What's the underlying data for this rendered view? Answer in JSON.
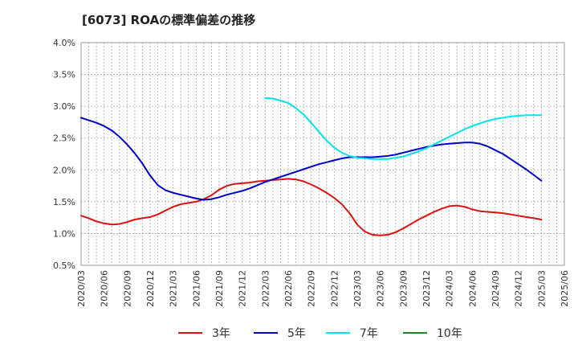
{
  "chart_data": {
    "type": "line",
    "title": "[6073]  ROAの標準偏差の推移",
    "xlabel": "",
    "ylabel": "",
    "ylim": [
      0.5,
      4.0
    ],
    "xlim": [
      "2020/03",
      "2025/06"
    ],
    "grid": true,
    "legend_position": "bottom",
    "y_ticks": [
      "0.5%",
      "1.0%",
      "1.5%",
      "2.0%",
      "2.5%",
      "3.0%",
      "3.5%",
      "4.0%"
    ],
    "x_ticks": [
      "2020/03",
      "2020/06",
      "2020/09",
      "2020/12",
      "2021/03",
      "2021/06",
      "2021/09",
      "2021/12",
      "2022/03",
      "2022/06",
      "2022/09",
      "2022/12",
      "2023/03",
      "2023/06",
      "2023/09",
      "2023/12",
      "2024/03",
      "2024/06",
      "2024/09",
      "2024/12",
      "2025/03",
      "2025/06"
    ],
    "series": [
      {
        "name": "3年",
        "color": "#dd1111",
        "points": [
          [
            "2020/03",
            1.28
          ],
          [
            "2020/04",
            1.24
          ],
          [
            "2020/05",
            1.19
          ],
          [
            "2020/06",
            1.16
          ],
          [
            "2020/07",
            1.14
          ],
          [
            "2020/08",
            1.15
          ],
          [
            "2020/09",
            1.18
          ],
          [
            "2020/10",
            1.22
          ],
          [
            "2020/11",
            1.24
          ],
          [
            "2020/12",
            1.26
          ],
          [
            "2021/01",
            1.3
          ],
          [
            "2021/02",
            1.36
          ],
          [
            "2021/03",
            1.42
          ],
          [
            "2021/04",
            1.46
          ],
          [
            "2021/05",
            1.48
          ],
          [
            "2021/06",
            1.5
          ],
          [
            "2021/07",
            1.54
          ],
          [
            "2021/08",
            1.6
          ],
          [
            "2021/09",
            1.69
          ],
          [
            "2021/10",
            1.75
          ],
          [
            "2021/11",
            1.78
          ],
          [
            "2021/12",
            1.79
          ],
          [
            "2022/01",
            1.8
          ],
          [
            "2022/02",
            1.82
          ],
          [
            "2022/03",
            1.83
          ],
          [
            "2022/04",
            1.84
          ],
          [
            "2022/05",
            1.85
          ],
          [
            "2022/06",
            1.86
          ],
          [
            "2022/07",
            1.85
          ],
          [
            "2022/08",
            1.82
          ],
          [
            "2022/09",
            1.77
          ],
          [
            "2022/10",
            1.71
          ],
          [
            "2022/11",
            1.64
          ],
          [
            "2022/12",
            1.56
          ],
          [
            "2023/01",
            1.46
          ],
          [
            "2023/02",
            1.32
          ],
          [
            "2023/03",
            1.14
          ],
          [
            "2023/04",
            1.03
          ],
          [
            "2023/05",
            0.98
          ],
          [
            "2023/06",
            0.97
          ],
          [
            "2023/07",
            0.98
          ],
          [
            "2023/08",
            1.02
          ],
          [
            "2023/09",
            1.08
          ],
          [
            "2023/10",
            1.15
          ],
          [
            "2023/11",
            1.22
          ],
          [
            "2023/12",
            1.28
          ],
          [
            "2024/01",
            1.34
          ],
          [
            "2024/02",
            1.39
          ],
          [
            "2024/03",
            1.43
          ],
          [
            "2024/04",
            1.44
          ],
          [
            "2024/05",
            1.42
          ],
          [
            "2024/06",
            1.38
          ],
          [
            "2024/07",
            1.35
          ],
          [
            "2024/08",
            1.34
          ],
          [
            "2024/09",
            1.33
          ],
          [
            "2024/10",
            1.32
          ],
          [
            "2024/11",
            1.3
          ],
          [
            "2024/12",
            1.28
          ],
          [
            "2025/01",
            1.26
          ],
          [
            "2025/02",
            1.24
          ],
          [
            "2025/03",
            1.22
          ]
        ]
      },
      {
        "name": "5年",
        "color": "#0000cc",
        "points": [
          [
            "2020/03",
            2.82
          ],
          [
            "2020/04",
            2.78
          ],
          [
            "2020/05",
            2.74
          ],
          [
            "2020/06",
            2.69
          ],
          [
            "2020/07",
            2.62
          ],
          [
            "2020/08",
            2.52
          ],
          [
            "2020/09",
            2.4
          ],
          [
            "2020/10",
            2.26
          ],
          [
            "2020/11",
            2.1
          ],
          [
            "2020/12",
            1.91
          ],
          [
            "2021/01",
            1.76
          ],
          [
            "2021/02",
            1.68
          ],
          [
            "2021/03",
            1.64
          ],
          [
            "2021/04",
            1.61
          ],
          [
            "2021/05",
            1.58
          ],
          [
            "2021/06",
            1.55
          ],
          [
            "2021/07",
            1.53
          ],
          [
            "2021/08",
            1.54
          ],
          [
            "2021/09",
            1.57
          ],
          [
            "2021/10",
            1.61
          ],
          [
            "2021/11",
            1.64
          ],
          [
            "2021/12",
            1.67
          ],
          [
            "2022/01",
            1.71
          ],
          [
            "2022/02",
            1.76
          ],
          [
            "2022/03",
            1.81
          ],
          [
            "2022/04",
            1.85
          ],
          [
            "2022/05",
            1.89
          ],
          [
            "2022/06",
            1.93
          ],
          [
            "2022/07",
            1.97
          ],
          [
            "2022/08",
            2.01
          ],
          [
            "2022/09",
            2.05
          ],
          [
            "2022/10",
            2.09
          ],
          [
            "2022/11",
            2.12
          ],
          [
            "2022/12",
            2.15
          ],
          [
            "2023/01",
            2.18
          ],
          [
            "2023/02",
            2.2
          ],
          [
            "2023/03",
            2.2
          ],
          [
            "2023/04",
            2.2
          ],
          [
            "2023/05",
            2.2
          ],
          [
            "2023/06",
            2.21
          ],
          [
            "2023/07",
            2.22
          ],
          [
            "2023/08",
            2.24
          ],
          [
            "2023/09",
            2.27
          ],
          [
            "2023/10",
            2.3
          ],
          [
            "2023/11",
            2.33
          ],
          [
            "2023/12",
            2.36
          ],
          [
            "2024/01",
            2.38
          ],
          [
            "2024/02",
            2.4
          ],
          [
            "2024/03",
            2.41
          ],
          [
            "2024/04",
            2.42
          ],
          [
            "2024/05",
            2.43
          ],
          [
            "2024/06",
            2.43
          ],
          [
            "2024/07",
            2.41
          ],
          [
            "2024/08",
            2.37
          ],
          [
            "2024/09",
            2.31
          ],
          [
            "2024/10",
            2.25
          ],
          [
            "2024/11",
            2.17
          ],
          [
            "2024/12",
            2.09
          ],
          [
            "2025/01",
            2.01
          ],
          [
            "2025/02",
            1.92
          ],
          [
            "2025/03",
            1.83
          ]
        ]
      },
      {
        "name": "7年",
        "color": "#00e5ee",
        "points": [
          [
            "2022/03",
            3.13
          ],
          [
            "2022/04",
            3.12
          ],
          [
            "2022/05",
            3.09
          ],
          [
            "2022/06",
            3.05
          ],
          [
            "2022/07",
            2.97
          ],
          [
            "2022/08",
            2.87
          ],
          [
            "2022/09",
            2.74
          ],
          [
            "2022/10",
            2.6
          ],
          [
            "2022/11",
            2.46
          ],
          [
            "2022/12",
            2.35
          ],
          [
            "2023/01",
            2.27
          ],
          [
            "2023/02",
            2.22
          ],
          [
            "2023/03",
            2.19
          ],
          [
            "2023/04",
            2.18
          ],
          [
            "2023/05",
            2.17
          ],
          [
            "2023/06",
            2.17
          ],
          [
            "2023/07",
            2.17
          ],
          [
            "2023/08",
            2.19
          ],
          [
            "2023/09",
            2.21
          ],
          [
            "2023/10",
            2.25
          ],
          [
            "2023/11",
            2.29
          ],
          [
            "2023/12",
            2.34
          ],
          [
            "2024/01",
            2.4
          ],
          [
            "2024/02",
            2.46
          ],
          [
            "2024/03",
            2.52
          ],
          [
            "2024/04",
            2.58
          ],
          [
            "2024/05",
            2.64
          ],
          [
            "2024/06",
            2.69
          ],
          [
            "2024/07",
            2.73
          ],
          [
            "2024/08",
            2.77
          ],
          [
            "2024/09",
            2.8
          ],
          [
            "2024/10",
            2.82
          ],
          [
            "2024/11",
            2.84
          ],
          [
            "2024/12",
            2.85
          ],
          [
            "2025/01",
            2.86
          ],
          [
            "2025/02",
            2.86
          ],
          [
            "2025/03",
            2.86
          ]
        ]
      },
      {
        "name": "10年",
        "color": "#228822",
        "points": []
      }
    ]
  }
}
